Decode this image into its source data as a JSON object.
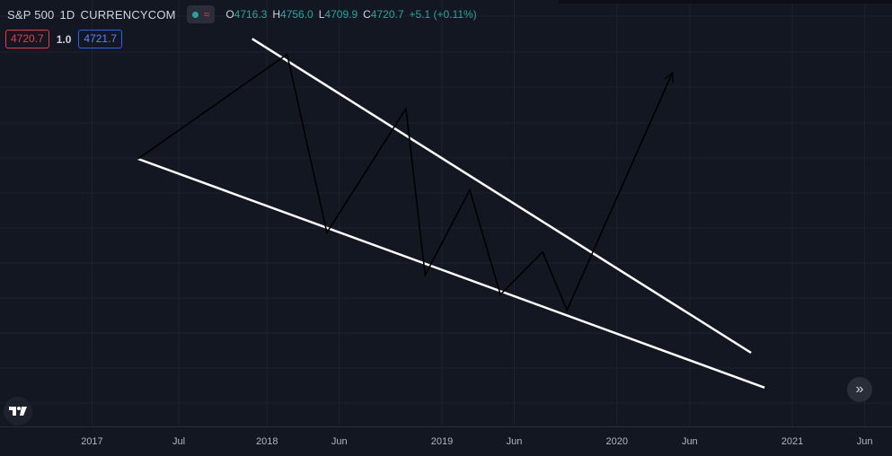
{
  "legend": {
    "symbol": "S&P 500",
    "interval": "1D",
    "source": "CURRENCYCOM",
    "open_key": "O",
    "open": "4716.3",
    "high_key": "H",
    "high": "4756.0",
    "low_key": "L",
    "low": "4709.9",
    "close_key": "C",
    "close": "4720.7",
    "change": "+5.1 (+0.11%)"
  },
  "prices": {
    "bid": "4720.7",
    "spread": "1.0",
    "ask": "4721.7"
  },
  "colors": {
    "background": "#131722",
    "grid": "#1e222d",
    "up": "#26a69a",
    "down": "#f23645",
    "accent": "#2962ff",
    "trendline": "#ffffff",
    "pattern": "#000000"
  },
  "icons": {
    "logo": "tradingview-logo-icon",
    "scroll": "double-chevron-right-icon"
  },
  "chart_data": {
    "type": "line",
    "title": "",
    "xlabel": "",
    "ylabel": "",
    "x_axis": "time",
    "grid": true,
    "tick_labels": [
      {
        "label": "2017",
        "date": "2017-01-01"
      },
      {
        "label": "Jul",
        "date": "2017-07-01"
      },
      {
        "label": "2018",
        "date": "2018-01-01"
      },
      {
        "label": "Jun",
        "date": "2018-06-01"
      },
      {
        "label": "2019",
        "date": "2019-01-01"
      },
      {
        "label": "Jun",
        "date": "2019-06-01"
      },
      {
        "label": "2020",
        "date": "2020-01-01"
      },
      {
        "label": "Jun",
        "date": "2020-06-01"
      },
      {
        "label": "2021",
        "date": "2021-01-01"
      },
      {
        "label": "Jun",
        "date": "2021-06-01"
      }
    ],
    "xlim": [
      "2016-06-23",
      "2021-07-28"
    ],
    "series": [
      {
        "kind": "trendline",
        "color": "#ffffff",
        "points": [
          {
            "x": "2017-12-01",
            "y": 100
          },
          {
            "x": "2020-10-07",
            "y": 19
          }
        ]
      },
      {
        "kind": "trendline",
        "color": "#ffffff",
        "points": [
          {
            "x": "2017-04-07",
            "y": 69
          },
          {
            "x": "2020-11-04",
            "y": 10
          }
        ]
      },
      {
        "kind": "zigzag",
        "color": "#000000",
        "points": [
          {
            "x": "2017-04-07",
            "y": 69
          },
          {
            "x": "2018-02-12",
            "y": 96
          },
          {
            "x": "2018-05-06",
            "y": 50
          },
          {
            "x": "2018-10-18",
            "y": 82
          },
          {
            "x": "2018-11-27",
            "y": 39
          },
          {
            "x": "2019-02-28",
            "y": 61
          },
          {
            "x": "2019-05-03",
            "y": 34
          },
          {
            "x": "2019-07-30",
            "y": 45
          },
          {
            "x": "2019-09-19",
            "y": 30
          },
          {
            "x": "2020-04-25",
            "y": 91
          }
        ]
      }
    ]
  }
}
